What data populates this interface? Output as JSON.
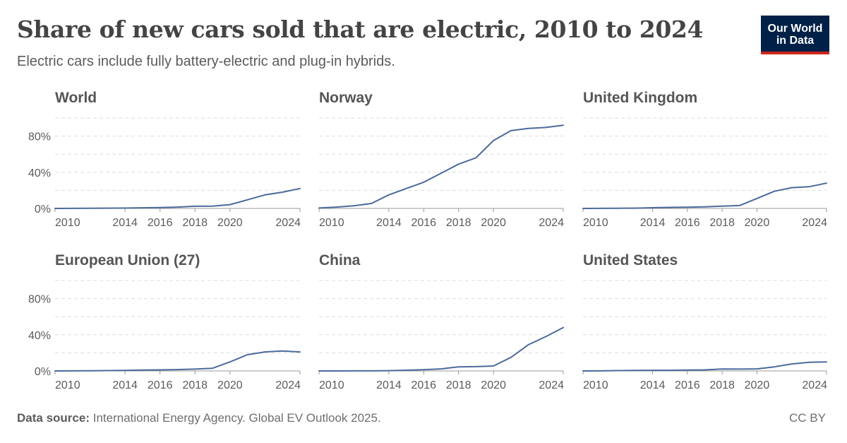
{
  "header": {
    "title": "Share of new cars sold that are electric, 2010 to 2024",
    "subtitle": "Electric cars include fully battery-electric and plug-in hybrids."
  },
  "logo": {
    "line1": "Our World",
    "line2": "in Data"
  },
  "footer": {
    "source_label": "Data source:",
    "source_text": "International Energy Agency. Global EV Outlook 2025.",
    "license": "CC BY"
  },
  "colors": {
    "line": "#4c6a9c",
    "grid": "#dddddd",
    "axis": "#999999",
    "text": "#5b5b5b"
  },
  "chart_data": [
    {
      "type": "line",
      "title": "World",
      "x": [
        2010,
        2011,
        2012,
        2013,
        2014,
        2015,
        2016,
        2017,
        2018,
        2019,
        2020,
        2021,
        2022,
        2023,
        2024
      ],
      "values": [
        0.01,
        0.05,
        0.2,
        0.3,
        0.4,
        0.7,
        1.0,
        1.5,
        2.4,
        2.6,
        4.2,
        9.5,
        15,
        18,
        22
      ],
      "xticks": [
        "2010",
        "2014",
        "2016",
        "2018",
        "2020",
        "2024"
      ],
      "yticks": [
        "0%",
        "40%",
        "80%"
      ],
      "ylim": [
        0,
        100
      ],
      "grid": true
    },
    {
      "type": "line",
      "title": "Norway",
      "x": [
        2010,
        2011,
        2012,
        2013,
        2014,
        2015,
        2016,
        2017,
        2018,
        2019,
        2020,
        2021,
        2022,
        2023,
        2024
      ],
      "values": [
        0.5,
        1.5,
        3,
        5.5,
        15,
        22,
        29,
        39,
        49,
        56,
        75,
        86,
        88.5,
        89.5,
        92
      ],
      "xticks": [
        "2010",
        "2014",
        "2016",
        "2018",
        "2020",
        "2024"
      ],
      "yticks": [
        "0%",
        "40%",
        "80%"
      ],
      "ylim": [
        0,
        100
      ],
      "grid": true
    },
    {
      "type": "line",
      "title": "United Kingdom",
      "x": [
        2010,
        2011,
        2012,
        2013,
        2014,
        2015,
        2016,
        2017,
        2018,
        2019,
        2020,
        2021,
        2022,
        2023,
        2024
      ],
      "values": [
        0,
        0.1,
        0.2,
        0.3,
        0.8,
        1.2,
        1.4,
        1.8,
        2.5,
        3.2,
        11,
        19,
        23,
        24,
        28
      ],
      "xticks": [
        "2010",
        "2014",
        "2016",
        "2018",
        "2020",
        "2024"
      ],
      "yticks": [
        "0%",
        "40%",
        "80%"
      ],
      "ylim": [
        0,
        100
      ],
      "grid": true
    },
    {
      "type": "line",
      "title": "European Union (27)",
      "x": [
        2010,
        2011,
        2012,
        2013,
        2014,
        2015,
        2016,
        2017,
        2018,
        2019,
        2020,
        2021,
        2022,
        2023,
        2024
      ],
      "values": [
        0,
        0.1,
        0.2,
        0.4,
        0.6,
        0.9,
        1.2,
        1.5,
        2.0,
        3.0,
        10,
        18,
        21,
        22,
        21
      ],
      "xticks": [
        "2010",
        "2014",
        "2016",
        "2018",
        "2020",
        "2024"
      ],
      "yticks": [
        "0%",
        "40%",
        "80%"
      ],
      "ylim": [
        0,
        100
      ],
      "grid": true
    },
    {
      "type": "line",
      "title": "China",
      "x": [
        2010,
        2011,
        2012,
        2013,
        2014,
        2015,
        2016,
        2017,
        2018,
        2019,
        2020,
        2021,
        2022,
        2023,
        2024
      ],
      "values": [
        0,
        0,
        0.1,
        0.1,
        0.3,
        0.8,
        1.4,
        2.3,
        4.5,
        4.8,
        5.5,
        15,
        29,
        38,
        48
      ],
      "xticks": [
        "2010",
        "2014",
        "2016",
        "2018",
        "2020",
        "2024"
      ],
      "yticks": [
        "0%",
        "40%",
        "80%"
      ],
      "ylim": [
        0,
        100
      ],
      "grid": true
    },
    {
      "type": "line",
      "title": "United States",
      "x": [
        2010,
        2011,
        2012,
        2013,
        2014,
        2015,
        2016,
        2017,
        2018,
        2019,
        2020,
        2021,
        2022,
        2023,
        2024
      ],
      "values": [
        0,
        0.1,
        0.4,
        0.6,
        0.7,
        0.7,
        0.9,
        1.2,
        2.1,
        2.0,
        2.3,
        4.5,
        7.7,
        9.5,
        10
      ],
      "xticks": [
        "2010",
        "2014",
        "2016",
        "2018",
        "2020",
        "2024"
      ],
      "yticks": [
        "0%",
        "40%",
        "80%"
      ],
      "ylim": [
        0,
        100
      ],
      "grid": true
    }
  ]
}
